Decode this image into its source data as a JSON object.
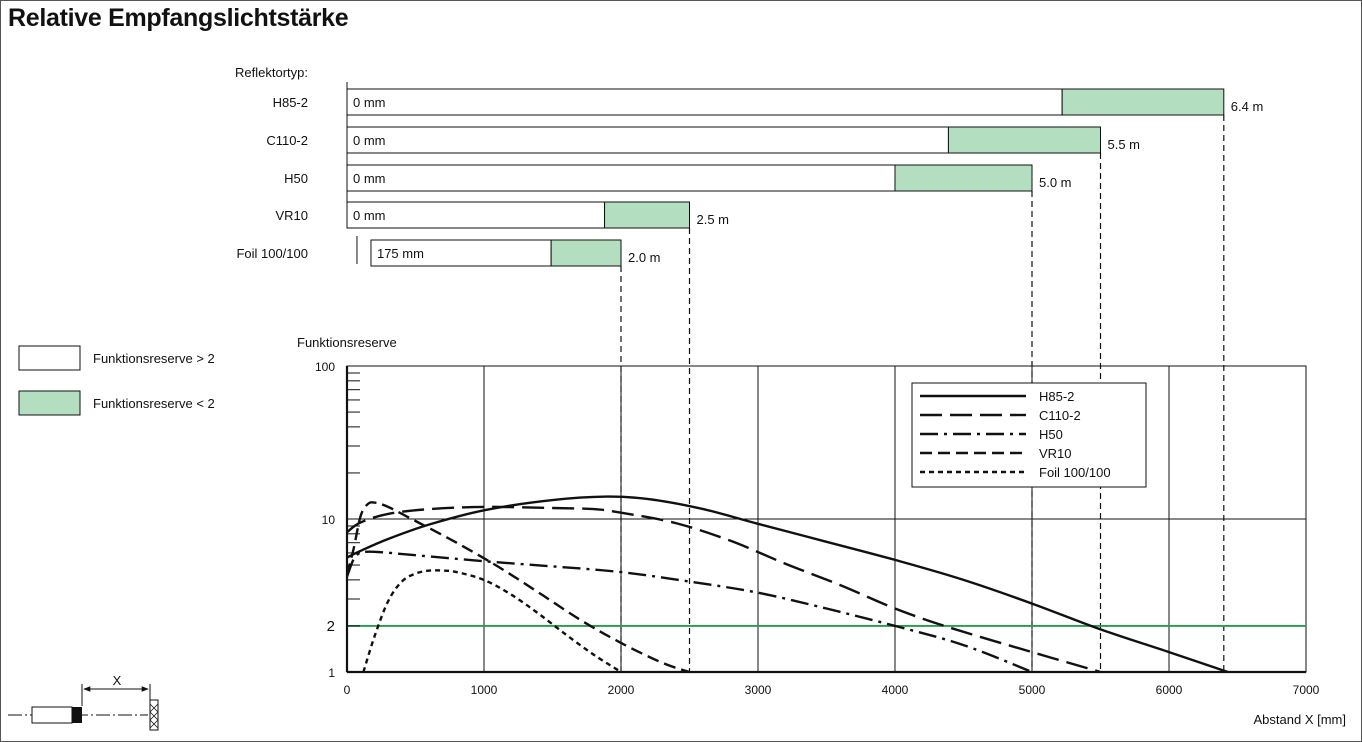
{
  "title": "Relative Empfangslichtstärke",
  "reflector_heading": "Reflektortyp:",
  "colors": {
    "white_zone": "#ffffff",
    "green_zone": "#b3dfc0",
    "threshold_line": "#22a04a"
  },
  "chart_data": [
    {
      "type": "bar",
      "orientation": "horizontal",
      "unit": "mm",
      "categories": [
        "H85-2",
        "C110-2",
        "H50",
        "VR10",
        "Foil 100/100"
      ],
      "bars": [
        {
          "name": "H85-2",
          "start": 0,
          "reserve_2_at": 5220,
          "end": 6400,
          "start_label": "0 mm",
          "end_label": "6.4 m"
        },
        {
          "name": "C110-2",
          "start": 0,
          "reserve_2_at": 4390,
          "end": 5500,
          "start_label": "0 mm",
          "end_label": "5.5 m"
        },
        {
          "name": "H50",
          "start": 0,
          "reserve_2_at": 4000,
          "end": 5000,
          "start_label": "0 mm",
          "end_label": "5.0 m"
        },
        {
          "name": "VR10",
          "start": 0,
          "reserve_2_at": 1880,
          "end": 2500,
          "start_label": "0 mm",
          "end_label": "2.5 m"
        },
        {
          "name": "Foil 100/100",
          "start": 175,
          "reserve_2_at": 1490,
          "end": 2000,
          "start_label": "175 mm",
          "end_label": "2.0 m"
        }
      ],
      "legend": [
        {
          "label": "Funktionsreserve > 2",
          "color": "#ffffff"
        },
        {
          "label": "Funktionsreserve < 2",
          "color": "#b3dfc0"
        }
      ]
    },
    {
      "type": "line",
      "ylabel": "Funktionsreserve",
      "xlabel": "Abstand X [mm]",
      "xlim": [
        0,
        7000
      ],
      "ylim": [
        1,
        100
      ],
      "yscale": "log",
      "x_ticks": [
        0,
        1000,
        2000,
        3000,
        4000,
        5000,
        6000,
        7000
      ],
      "y_tick_labels": [
        "1",
        "2",
        "10",
        "100"
      ],
      "threshold": 2,
      "legend_position": "top-right",
      "series": [
        {
          "name": "H85-2",
          "dash": "solid",
          "x": [
            0,
            100,
            300,
            600,
            1000,
            1500,
            1900,
            2200,
            2600,
            3000,
            3500,
            4000,
            4500,
            5000,
            5500,
            6000,
            6430
          ],
          "y": [
            5.6,
            6.2,
            7.4,
            9.2,
            11.4,
            13.3,
            14,
            13.5,
            11.6,
            9.3,
            7.1,
            5.4,
            4,
            2.8,
            1.9,
            1.35,
            1
          ]
        },
        {
          "name": "C110-2",
          "dash": "long",
          "x": [
            0,
            100,
            300,
            600,
            1000,
            1500,
            1800,
            2000,
            2400,
            2800,
            3200,
            3600,
            4000,
            4400,
            5000,
            5500
          ],
          "y": [
            8.2,
            9.5,
            10.8,
            11.6,
            12,
            11.8,
            11.6,
            11,
            9.4,
            7.2,
            5.1,
            3.7,
            2.6,
            1.95,
            1.35,
            1
          ]
        },
        {
          "name": "H50",
          "dash": "dashdot",
          "x": [
            0,
            50,
            100,
            200,
            500,
            1000,
            1500,
            2000,
            2500,
            3000,
            3500,
            4000,
            4500,
            5000
          ],
          "y": [
            4.2,
            5.5,
            6,
            6.1,
            5.8,
            5.3,
            4.9,
            4.5,
            3.9,
            3.3,
            2.6,
            2,
            1.5,
            1
          ]
        },
        {
          "name": "VR10",
          "dash": "medium",
          "x": [
            0,
            50,
            100,
            150,
            200,
            300,
            500,
            800,
            1100,
            1400,
            1700,
            2000,
            2300,
            2500
          ],
          "y": [
            4.3,
            6.5,
            10.5,
            12.5,
            12.8,
            12,
            9.7,
            7,
            4.9,
            3.3,
            2.2,
            1.55,
            1.15,
            1
          ]
        },
        {
          "name": "Foil 100/100",
          "dash": "short",
          "x": [
            120,
            200,
            300,
            400,
            500,
            600,
            700,
            800,
            1000,
            1200,
            1400,
            1600,
            1800,
            2000
          ],
          "y": [
            1,
            1.7,
            2.9,
            3.9,
            4.4,
            4.6,
            4.6,
            4.5,
            4,
            3.2,
            2.4,
            1.75,
            1.3,
            1
          ]
        }
      ]
    }
  ],
  "sketch": {
    "label": "X"
  }
}
